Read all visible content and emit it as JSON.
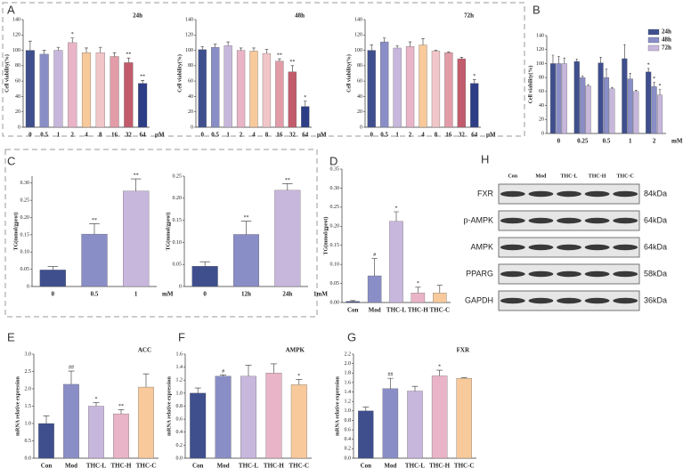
{
  "panel_labels": [
    "A",
    "B",
    "C",
    "D",
    "H",
    "E",
    "F",
    "G"
  ],
  "blot": {
    "lanes": [
      "Con",
      "Mod",
      "THC-L",
      "THC-H",
      "THC-C"
    ],
    "rows": [
      {
        "name": "FXR",
        "kda": "84kDa"
      },
      {
        "name": "p-AMPK",
        "kda": "64kDa"
      },
      {
        "name": "AMPK",
        "kda": "64kDa"
      },
      {
        "name": "PPARG",
        "kda": "58kDa"
      },
      {
        "name": "GAPDH",
        "kda": "36kDa"
      }
    ]
  },
  "chart_data": [
    {
      "type": "bar",
      "title": "24h",
      "y_label": "Cell viability(%)",
      "x_unit": "μM",
      "categories": [
        "0",
        "0.5",
        "1",
        "2",
        "4",
        "8",
        "16",
        "32",
        "64"
      ],
      "values": [
        100,
        95,
        100,
        110,
        97,
        97,
        92,
        84,
        57
      ],
      "errors": [
        12,
        5,
        4,
        6,
        6,
        7,
        5,
        6,
        4
      ],
      "annotations": [
        null,
        null,
        null,
        "*",
        null,
        null,
        null,
        "**",
        "**"
      ],
      "colors": [
        "#3f4f8e",
        "#8a8ec6",
        "#c8b7dc",
        "#e9b4c7",
        "#f7c99b",
        "#f1c6c9",
        "#e29ca8",
        "#c25b6b",
        "#2e3e86"
      ],
      "ylim": [
        0,
        140
      ],
      "yticks": [
        0,
        20,
        40,
        60,
        80,
        100,
        120,
        140
      ]
    },
    {
      "type": "bar",
      "title": "48h",
      "y_label": "Cell viability(%)",
      "x_unit": "μM",
      "categories": [
        "0",
        "0.5",
        "1",
        "2",
        "4",
        "8",
        "16",
        "32",
        "64"
      ],
      "values": [
        101,
        104,
        106,
        100,
        99,
        96,
        86,
        72,
        27
      ],
      "errors": [
        4,
        4,
        5,
        3,
        4,
        5,
        3,
        8,
        7
      ],
      "annotations": [
        null,
        null,
        null,
        null,
        null,
        null,
        "**",
        "**",
        "*"
      ],
      "colors": [
        "#3f4f8e",
        "#8a8ec6",
        "#c8b7dc",
        "#e9b4c7",
        "#f7c99b",
        "#f1c6c9",
        "#e29ca8",
        "#c25b6b",
        "#2e3e86"
      ],
      "ylim": [
        0,
        140
      ],
      "yticks": [
        0,
        20,
        40,
        60,
        80,
        100,
        120,
        140
      ]
    },
    {
      "type": "bar",
      "title": "72h",
      "y_label": "Cell viability(%)",
      "x_unit": "μM",
      "categories": [
        "0",
        "0.5",
        "1",
        "2",
        "4",
        "8",
        "16",
        "32",
        "64"
      ],
      "values": [
        100,
        111,
        103,
        105,
        107,
        99,
        97,
        89,
        57
      ],
      "errors": [
        7,
        5,
        3,
        6,
        8,
        1,
        1,
        2,
        5
      ],
      "annotations": [
        null,
        null,
        null,
        null,
        null,
        null,
        null,
        null,
        "*"
      ],
      "colors": [
        "#3f4f8e",
        "#8a8ec6",
        "#c8b7dc",
        "#e9b4c7",
        "#f7c99b",
        "#f1c6c9",
        "#e29ca8",
        "#c25b6b",
        "#2e3e86"
      ],
      "ylim": [
        0,
        140
      ],
      "yticks": [
        0,
        20,
        40,
        60,
        80,
        100,
        120,
        140
      ]
    },
    {
      "type": "grouped_bar",
      "y_label": "Cell viability(%)",
      "x_unit": "mM",
      "legend": "top-right",
      "categories": [
        "0",
        "0.25",
        "0.5",
        "1",
        "2"
      ],
      "series": [
        {
          "name": "24h",
          "color": "#3f4f8e",
          "values": [
            100,
            103,
            101,
            107,
            88
          ],
          "errors": [
            12,
            3,
            8,
            20,
            5
          ],
          "annotations": [
            null,
            null,
            null,
            null,
            "*"
          ]
        },
        {
          "name": "48h",
          "color": "#8a8ec6",
          "values": [
            100,
            80,
            80,
            78,
            67
          ],
          "errors": [
            10,
            2,
            12,
            8,
            6
          ],
          "annotations": [
            null,
            null,
            null,
            null,
            "*"
          ]
        },
        {
          "name": "72h",
          "color": "#c8b7dc",
          "values": [
            100,
            68,
            64,
            60,
            55
          ],
          "errors": [
            8,
            2,
            2,
            2,
            8
          ],
          "annotations": [
            null,
            null,
            null,
            null,
            "*"
          ]
        }
      ],
      "ylim": [
        0,
        140
      ],
      "yticks": [
        0,
        20,
        40,
        60,
        80,
        100,
        120,
        140
      ]
    },
    {
      "type": "bar",
      "y_label": "TG(mmol/gprot)",
      "x_unit": "mM",
      "categories": [
        "0",
        "0.5",
        "1"
      ],
      "values": [
        0.048,
        0.152,
        0.277
      ],
      "errors": [
        0.01,
        0.03,
        0.035
      ],
      "annotations": [
        null,
        "**",
        "**"
      ],
      "colors": [
        "#3f4f8e",
        "#8a8ec6",
        "#c8b7dc"
      ],
      "ylim": [
        0,
        0.32
      ],
      "yticks": [
        0,
        0.05,
        {
          "value": 0.1,
          "label": "0.10"
        },
        0.15,
        {
          "value": 0.2,
          "label": "0.20"
        },
        0.25,
        {
          "value": 0.3,
          "label": "0.30"
        }
      ]
    },
    {
      "type": "bar",
      "y_label": "TG(mmol/gprot)",
      "x_unit": "1mM",
      "categories": [
        "0",
        "12h",
        "24h"
      ],
      "values": [
        0.046,
        0.118,
        0.218
      ],
      "errors": [
        0.01,
        0.03,
        0.015
      ],
      "annotations": [
        null,
        "**",
        "**"
      ],
      "colors": [
        "#3f4f8e",
        "#8a8ec6",
        "#c8b7dc"
      ],
      "ylim": [
        0,
        0.25
      ],
      "yticks": [
        0,
        0.05,
        {
          "value": 0.1,
          "label": "0.10"
        },
        0.15,
        {
          "value": 0.2,
          "label": "0.20"
        },
        0.25
      ]
    },
    {
      "type": "bar",
      "y_label": "TG(mmol/gprot)",
      "categories": [
        "Con",
        "Mod",
        "THC-L",
        "THC-H",
        "THC-C"
      ],
      "values": [
        0.003,
        0.07,
        0.213,
        0.025,
        0.025
      ],
      "errors": [
        0.002,
        0.045,
        0.025,
        0.015,
        0.02
      ],
      "annotations": [
        null,
        "#",
        "*",
        "*",
        null
      ],
      "colors": [
        "#3f4f8e",
        "#8a8ec6",
        "#c8b7dc",
        "#e9b4c7",
        "#f7c99b"
      ],
      "ylim": [
        0,
        0.35
      ],
      "yticks": [
        {
          "value": 0,
          "label": "0.00"
        },
        0.05,
        {
          "value": 0.1,
          "label": "0.10"
        },
        0.15,
        {
          "value": 0.2,
          "label": "0.20"
        },
        0.25,
        {
          "value": 0.3,
          "label": "0.30"
        },
        0.35
      ]
    },
    {
      "type": "bar",
      "title": "ACC",
      "y_label": "mRNA relative expression",
      "categories": [
        "Con",
        "Mod",
        "THC-L",
        "THC-H",
        "THC-C"
      ],
      "values": [
        1.0,
        2.13,
        1.5,
        1.28,
        2.05
      ],
      "errors": [
        0.22,
        0.38,
        0.1,
        0.12,
        0.38
      ],
      "annotations": [
        null,
        "##",
        "*",
        "**",
        null
      ],
      "colors": [
        "#3f4f8e",
        "#8a8ec6",
        "#c8b7dc",
        "#e9b4c7",
        "#f7c99b"
      ],
      "ylim": [
        0,
        3.0
      ],
      "yticks": [
        {
          "value": 0,
          "label": "0.0"
        },
        0.5,
        {
          "value": 1,
          "label": "1.0"
        },
        1.5,
        {
          "value": 2,
          "label": "2.0"
        },
        2.5,
        {
          "value": 3,
          "label": "3.0"
        }
      ]
    },
    {
      "type": "bar",
      "title": "AMPK",
      "y_label": "mRNA relative expression",
      "categories": [
        "Con",
        "Mod",
        "THC-L",
        "THC-H",
        "THC-C"
      ],
      "values": [
        1.0,
        1.26,
        1.26,
        1.31,
        1.13
      ],
      "errors": [
        0.08,
        0.02,
        0.17,
        0.14,
        0.08
      ],
      "annotations": [
        null,
        "#",
        null,
        null,
        "*"
      ],
      "colors": [
        "#3f4f8e",
        "#8a8ec6",
        "#c8b7dc",
        "#e9b4c7",
        "#f7c99b"
      ],
      "ylim": [
        0,
        1.6
      ],
      "yticks": [
        {
          "value": 0,
          "label": "0.0"
        },
        0.2,
        0.4,
        0.6,
        0.8,
        {
          "value": 1,
          "label": "1.0"
        },
        1.2,
        1.4,
        1.6
      ]
    },
    {
      "type": "bar",
      "title": "FXR",
      "y_label": "mRNA relative expression",
      "categories": [
        "Con",
        "Mod",
        "THC-L",
        "THC-H",
        "THC-C"
      ],
      "values": [
        1.0,
        1.47,
        1.42,
        1.74,
        1.69
      ],
      "errors": [
        0.08,
        0.22,
        0.1,
        0.12,
        0.01
      ],
      "annotations": [
        null,
        "##",
        null,
        "*",
        null
      ],
      "colors": [
        "#3f4f8e",
        "#8a8ec6",
        "#c8b7dc",
        "#e9b4c7",
        "#f7c99b"
      ],
      "ylim": [
        0,
        2.2
      ],
      "yticks": [
        {
          "value": 0,
          "label": "0.0"
        },
        0.2,
        0.4,
        0.6,
        0.8,
        {
          "value": 1,
          "label": "1.0"
        },
        1.2,
        1.4,
        1.6,
        1.8,
        {
          "value": 2,
          "label": "2.0"
        },
        2.2
      ]
    }
  ]
}
